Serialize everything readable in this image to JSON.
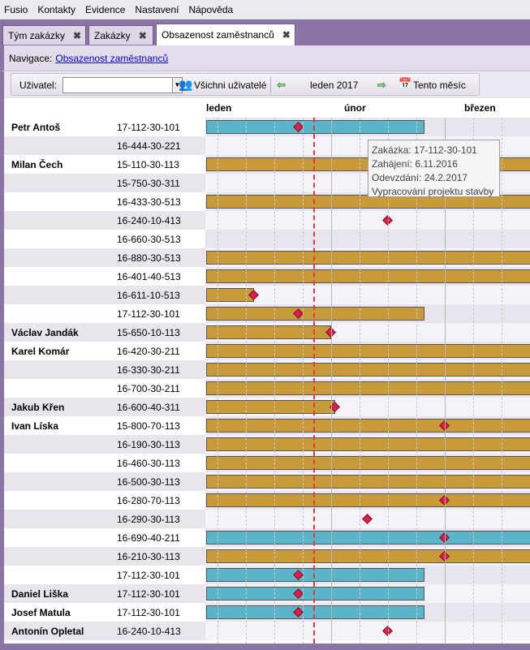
{
  "menu": [
    "Fusio",
    "Kontakty",
    "Evidence",
    "Nastavení",
    "Nápověda"
  ],
  "tabs": [
    {
      "label": "Tým zakázky",
      "close": "✖"
    },
    {
      "label": "Zakázky",
      "close": "✖"
    },
    {
      "label": "Obsazenost zaměstnanců",
      "close": "✖"
    }
  ],
  "nav": {
    "prefix": "Navigace:",
    "link": "Obsazenost zaměstnanců"
  },
  "toolbar": {
    "user_label": "Uživatel:",
    "user_value": "",
    "all_users": "Všichni uživatelé",
    "period": "leden 2017",
    "this_month": "Tento měsíc"
  },
  "gantt": {
    "months": [
      "leden",
      "únor",
      "březen"
    ],
    "rows": [
      {
        "name": "Petr Antoš",
        "code": "17-112-30-101",
        "bar": "blue",
        "bar_end": "2017-02-24",
        "milestone": "2017-01-24"
      },
      {
        "name": "",
        "code": "16-444-30-221"
      },
      {
        "name": "Milan Čech",
        "code": "15-110-30-113",
        "bar": "orange",
        "bar_end": "open"
      },
      {
        "name": "",
        "code": "15-750-30-311"
      },
      {
        "name": "",
        "code": "16-433-30-513",
        "bar": "orange",
        "bar_end": "open"
      },
      {
        "name": "",
        "code": "16-240-10-413",
        "milestone": "2017-02-15"
      },
      {
        "name": "",
        "code": "16-660-30-513"
      },
      {
        "name": "",
        "code": "16-880-30-513",
        "bar": "orange",
        "bar_end": "open"
      },
      {
        "name": "",
        "code": "16-401-40-513",
        "bar": "orange",
        "bar_end": "open"
      },
      {
        "name": "",
        "code": "16-611-10-513",
        "bar": "orange",
        "bar_end": "2017-01-13",
        "milestone": "2017-01-13"
      },
      {
        "name": "",
        "code": "17-112-30-101",
        "bar": "orange",
        "bar_end": "2017-02-24",
        "milestone": "2017-01-24"
      },
      {
        "name": "Václav Jandák",
        "code": "15-650-10-113",
        "bar": "orange",
        "bar_end": "2017-02-01",
        "milestone": "2017-02-01"
      },
      {
        "name": "Karel Komár",
        "code": "16-420-30-211",
        "bar": "orange",
        "bar_end": "open"
      },
      {
        "name": "",
        "code": "16-330-30-211",
        "bar": "orange",
        "bar_end": "open"
      },
      {
        "name": "",
        "code": "16-700-30-211",
        "bar": "orange",
        "bar_end": "open"
      },
      {
        "name": "Jakub Křen",
        "code": "16-600-40-311",
        "bar": "orange",
        "bar_end": "2017-02-02",
        "milestone": "2017-02-02"
      },
      {
        "name": "Ivan Líska",
        "code": "15-800-70-113",
        "bar": "orange",
        "bar_end": "open",
        "milestone": "2017-03-01"
      },
      {
        "name": "",
        "code": "16-190-30-113",
        "bar": "orange",
        "bar_end": "open"
      },
      {
        "name": "",
        "code": "16-460-30-113",
        "bar": "orange",
        "bar_end": "open"
      },
      {
        "name": "",
        "code": "16-500-30-113",
        "bar": "orange",
        "bar_end": "open"
      },
      {
        "name": "",
        "code": "16-280-70-113",
        "bar": "orange",
        "bar_end": "open",
        "milestone": "2017-03-01"
      },
      {
        "name": "",
        "code": "16-290-30-113",
        "milestone": "2017-02-10"
      },
      {
        "name": "",
        "code": "16-690-40-211",
        "bar": "blue",
        "bar_end": "open",
        "milestone": "2017-03-01"
      },
      {
        "name": "",
        "code": "16-210-30-113",
        "bar": "orange",
        "bar_end": "open",
        "milestone": "2017-03-01"
      },
      {
        "name": "",
        "code": "17-112-30-101",
        "bar": "blue",
        "bar_end": "2017-02-24",
        "milestone": "2017-01-24"
      },
      {
        "name": "Daniel Liška",
        "code": "17-112-30-101",
        "bar": "blue",
        "bar_end": "2017-02-24",
        "milestone": "2017-01-24"
      },
      {
        "name": "Josef Matula",
        "code": "17-112-30-101",
        "bar": "blue",
        "bar_end": "2017-02-24",
        "milestone": "2017-01-24"
      },
      {
        "name": "Antonín Opletal",
        "code": "16-240-10-413",
        "milestone": "2017-02-15"
      }
    ]
  },
  "tooltip": {
    "line1": "Zakázka: 17-112-30-101",
    "line2": "Zahájení: 6.11.2016",
    "line3": "Odevzdání: 24.2.2017",
    "line4": "Vypracování projektu stavby"
  },
  "colors": {
    "accent": "#8a76a6",
    "bar_blue": "#5bb5c9",
    "bar_orange": "#c99a3a",
    "milestone": "#e01e4a",
    "today_line": "#e03a3a"
  }
}
